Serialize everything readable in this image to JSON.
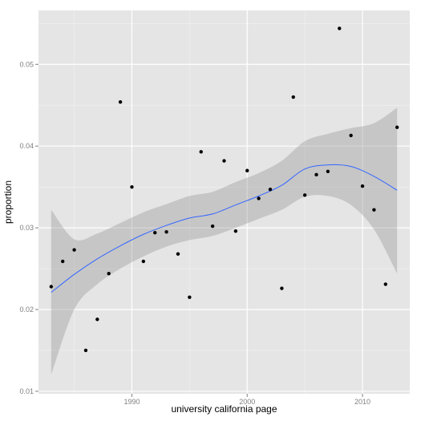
{
  "chart_data": {
    "type": "scatter",
    "title": "",
    "xlabel": "university california page",
    "ylabel": "proportion",
    "xlim": [
      1981.9,
      2014.1
    ],
    "ylim": [
      0.0097,
      0.0566
    ],
    "x_ticks": [
      1990,
      2000,
      2010
    ],
    "x_tick_labels": [
      "1990",
      "2000",
      "2010"
    ],
    "y_ticks": [
      0.01,
      0.02,
      0.03,
      0.04,
      0.05
    ],
    "y_tick_labels": [
      "0.01",
      "0.02",
      "0.03",
      "0.04",
      "0.05"
    ],
    "grid": true,
    "legend": "none",
    "colors": {
      "panel": "#e5e5e5",
      "grid_major": "#ffffff",
      "grid_minor": "#f2f2f2",
      "point": "#000000",
      "smooth_line": "#3366ff",
      "ribbon": "#999999"
    },
    "points": {
      "x": [
        1983,
        1984,
        1985,
        1986,
        1987,
        1988,
        1989,
        1990,
        1991,
        1992,
        1993,
        1994,
        1995,
        1996,
        1997,
        1998,
        1999,
        2000,
        2001,
        2002,
        2003,
        2004,
        2005,
        2006,
        2007,
        2008,
        2009,
        2010,
        2011,
        2012,
        2013
      ],
      "y": [
        0.0228,
        0.0259,
        0.0273,
        0.015,
        0.0188,
        0.0244,
        0.0454,
        0.035,
        0.0259,
        0.0294,
        0.0295,
        0.0268,
        0.0215,
        0.0393,
        0.0302,
        0.0382,
        0.0296,
        0.037,
        0.0336,
        0.0347,
        0.0226,
        0.046,
        0.034,
        0.0365,
        0.0369,
        0.0544,
        0.0413,
        0.0351,
        0.0322,
        0.0231,
        0.0423
      ]
    },
    "smooth": {
      "x": [
        1983,
        1985,
        1987,
        1989,
        1991,
        1993,
        1995,
        1997,
        1999,
        2001,
        2003,
        2005,
        2007,
        2009,
        2011,
        2013
      ],
      "y": [
        0.0221,
        0.0243,
        0.0262,
        0.0278,
        0.0292,
        0.0303,
        0.0312,
        0.0317,
        0.0328,
        0.0339,
        0.0352,
        0.0372,
        0.0377,
        0.0375,
        0.0363,
        0.0346
      ],
      "lower": [
        0.012,
        0.02,
        0.0231,
        0.025,
        0.0265,
        0.0277,
        0.0285,
        0.029,
        0.03,
        0.0311,
        0.0322,
        0.0338,
        0.0339,
        0.0328,
        0.0298,
        0.0244
      ],
      "upper": [
        0.0322,
        0.0286,
        0.0293,
        0.0306,
        0.0319,
        0.0329,
        0.0339,
        0.0344,
        0.0356,
        0.0367,
        0.0382,
        0.0406,
        0.0415,
        0.0422,
        0.0428,
        0.0447
      ]
    }
  }
}
